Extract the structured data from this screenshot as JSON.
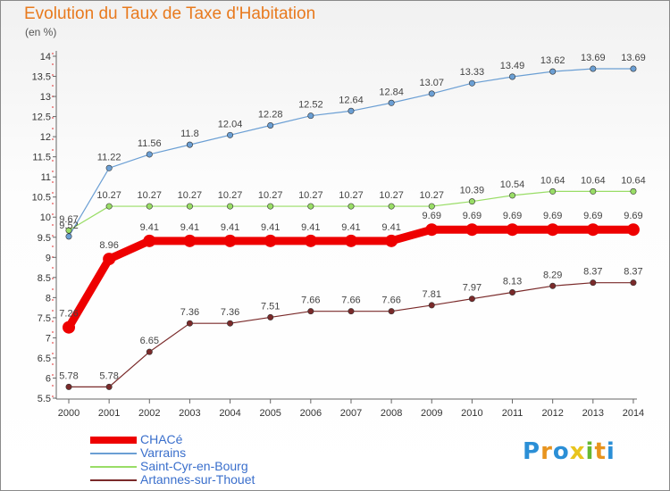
{
  "chart_data": {
    "type": "line",
    "title": "Evolution du Taux de Taxe d'Habitation",
    "unit_label": "(en %)",
    "x": [
      "2000",
      "2001",
      "2002",
      "2003",
      "2004",
      "2005",
      "2006",
      "2007",
      "2008",
      "2009",
      "2010",
      "2011",
      "2012",
      "2013",
      "2014"
    ],
    "y_ticks": [
      "5.5",
      "6",
      "6.5",
      "7",
      "7.5",
      "8",
      "8.5",
      "9",
      "9.5",
      "10",
      "10.5",
      "11",
      "11.5",
      "12",
      "12.5",
      "13",
      "13.5",
      "14"
    ],
    "ylim": [
      5.5,
      14
    ],
    "grid": false,
    "legend_position": "bottom-left",
    "series": [
      {
        "name": "CHACé",
        "color": "#ee0000",
        "values": [
          7.26,
          8.96,
          9.41,
          9.41,
          9.41,
          9.41,
          9.41,
          9.41,
          9.41,
          9.69,
          9.69,
          9.69,
          9.69,
          9.69,
          9.69
        ],
        "labels": [
          "7.26",
          "8.96",
          "9.41",
          "9.41",
          "9.41",
          "9.41",
          "9.41",
          "9.41",
          "9.41",
          "9.69",
          "9.69",
          "9.69",
          "9.69",
          "9.69",
          "9.69"
        ]
      },
      {
        "name": "Varrains",
        "color": "#6b9fd4",
        "values": [
          9.52,
          11.22,
          11.56,
          11.8,
          12.04,
          12.28,
          12.52,
          12.64,
          12.84,
          13.07,
          13.33,
          13.49,
          13.62,
          13.69,
          13.69
        ],
        "labels": [
          "9.52",
          "11.22",
          "11.56",
          "11.8",
          "12.04",
          "12.28",
          "12.52",
          "12.64",
          "12.84",
          "13.07",
          "13.33",
          "13.49",
          "13.62",
          "13.69",
          "13.69"
        ]
      },
      {
        "name": "Saint-Cyr-en-Bourg",
        "color": "#99dd66",
        "values": [
          9.67,
          10.27,
          10.27,
          10.27,
          10.27,
          10.27,
          10.27,
          10.27,
          10.27,
          10.27,
          10.39,
          10.54,
          10.64,
          10.64,
          10.64
        ],
        "labels": [
          "9.67",
          "10.27",
          "10.27",
          "10.27",
          "10.27",
          "10.27",
          "10.27",
          "10.27",
          "10.27",
          "10.27",
          "10.39",
          "10.54",
          "10.64",
          "10.64",
          "10.64"
        ]
      },
      {
        "name": "Artannes-sur-Thouet",
        "color": "#7a2a2a",
        "values": [
          5.78,
          5.78,
          6.65,
          7.36,
          7.36,
          7.51,
          7.66,
          7.66,
          7.66,
          7.81,
          7.97,
          8.13,
          8.29,
          8.37,
          8.37
        ],
        "labels": [
          "5.78",
          "5.78",
          "6.65",
          "7.36",
          "7.36",
          "7.51",
          "7.66",
          "7.66",
          "7.66",
          "7.81",
          "7.97",
          "8.13",
          "8.29",
          "8.37",
          "8.37"
        ]
      }
    ]
  },
  "legend": [
    {
      "label": "CHACé"
    },
    {
      "label": "Varrains"
    },
    {
      "label": "Saint-Cyr-en-Bourg"
    },
    {
      "label": "Artannes-sur-Thouet"
    }
  ],
  "logo": {
    "letters": [
      "P",
      "r",
      "o",
      "x",
      "i",
      "t",
      "i"
    ],
    "colors": [
      "#2b8fd6",
      "#e8941e",
      "#2b8fd6",
      "#e8c41e",
      "#66b832",
      "#e8941e",
      "#2b8fd6"
    ]
  }
}
